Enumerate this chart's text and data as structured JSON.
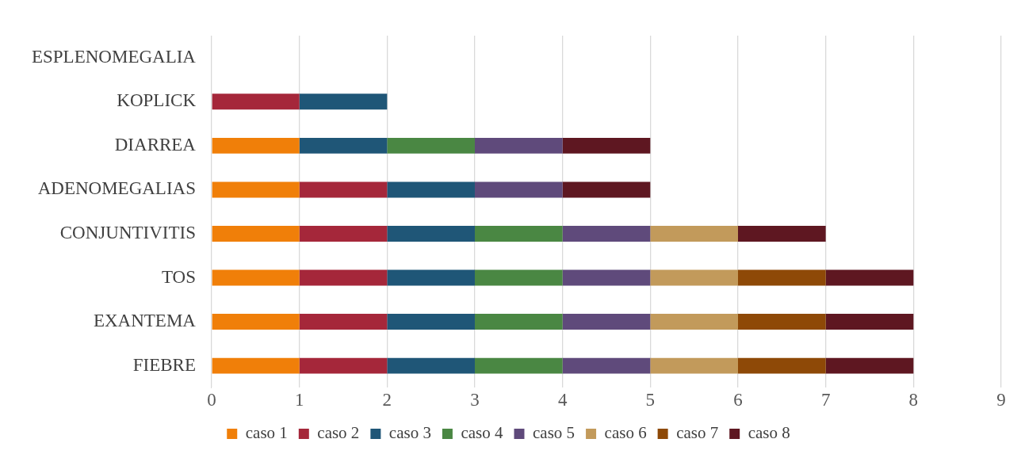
{
  "chart_data": {
    "type": "bar",
    "orientation": "horizontal",
    "stacked": true,
    "categories": [
      "ESPLENOMEGALIA",
      "KOPLICK",
      "DIARREA",
      "ADENOMEGALIAS",
      "CONJUNTIVITIS",
      "TOS",
      "EXANTEMA",
      "FIEBRE"
    ],
    "series": [
      {
        "name": "caso 1",
        "color": "#f07f09",
        "values": [
          0,
          0,
          1,
          1,
          1,
          1,
          1,
          1
        ]
      },
      {
        "name": "caso 2",
        "color": "#a5273a",
        "values": [
          0,
          1,
          0,
          1,
          1,
          1,
          1,
          1
        ]
      },
      {
        "name": "caso 3",
        "color": "#1f5677",
        "values": [
          0,
          1,
          1,
          1,
          1,
          1,
          1,
          1
        ]
      },
      {
        "name": "caso 4",
        "color": "#4a8743",
        "values": [
          0,
          0,
          1,
          0,
          1,
          1,
          1,
          1
        ]
      },
      {
        "name": "caso 5",
        "color": "#5f4a7b",
        "values": [
          0,
          0,
          1,
          1,
          1,
          1,
          1,
          1
        ]
      },
      {
        "name": "caso 6",
        "color": "#c29a5b",
        "values": [
          0,
          0,
          0,
          0,
          1,
          1,
          1,
          1
        ]
      },
      {
        "name": "caso 7",
        "color": "#8e4907",
        "values": [
          0,
          0,
          0,
          0,
          0,
          1,
          1,
          1
        ]
      },
      {
        "name": "caso 8",
        "color": "#5e1721",
        "values": [
          0,
          0,
          1,
          1,
          1,
          1,
          1,
          1
        ]
      }
    ],
    "xlim": [
      0,
      9
    ],
    "xticks": [
      0,
      1,
      2,
      3,
      4,
      5,
      6,
      7,
      8,
      9
    ],
    "grid": "x",
    "legend": "bottom"
  }
}
